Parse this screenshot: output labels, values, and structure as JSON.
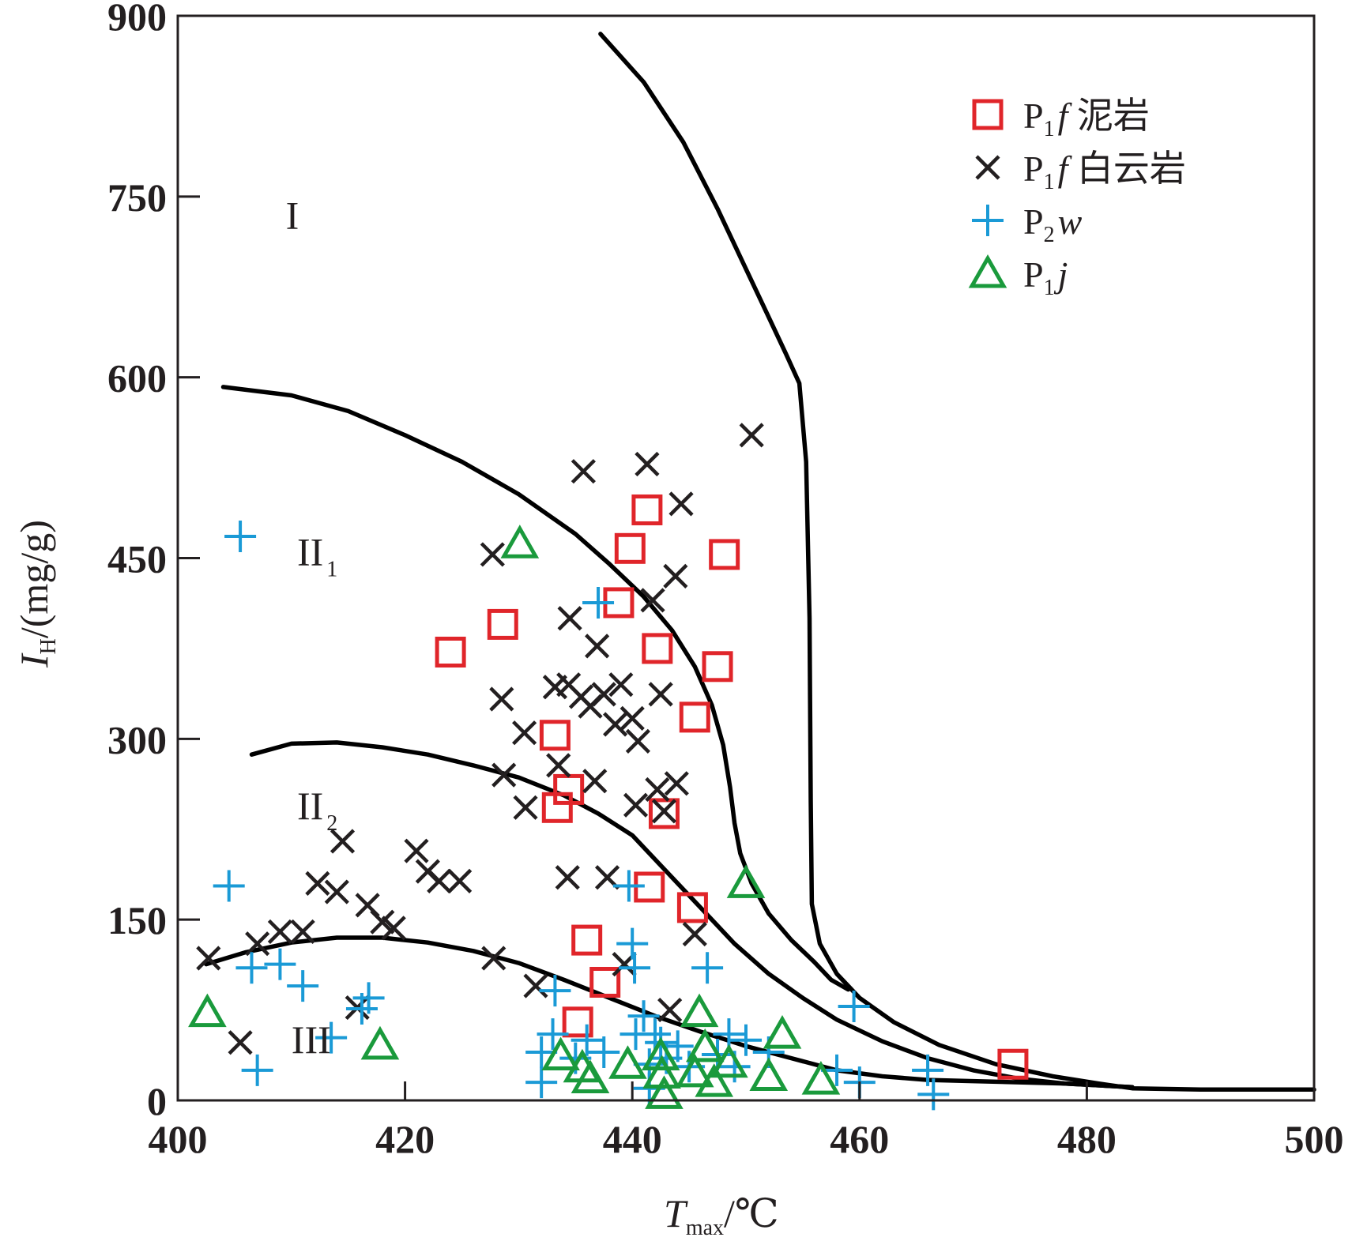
{
  "chart_data": {
    "type": "scatter",
    "xlabel": {
      "main": "T",
      "sub": "max",
      "unit": "/℃"
    },
    "ylabel": {
      "main": "I",
      "sub": "H",
      "unit": "/(mg/g)"
    },
    "xlim": [
      400,
      500
    ],
    "ylim": [
      0,
      900
    ],
    "xticks": [
      "400",
      "420",
      "440",
      "460",
      "480",
      "500"
    ],
    "yticks": [
      "0",
      "150",
      "300",
      "450",
      "600",
      "750",
      "900"
    ],
    "grid": false,
    "legend_position": "top-right",
    "colors": {
      "mudstone": "#e0252a",
      "dolomite": "#231f20",
      "p2w": "#1a9ad6",
      "p1j": "#1a9a3c",
      "curve": "#000000"
    },
    "regions": [
      {
        "key": "I",
        "main": "I",
        "sub": "",
        "x": 409.5,
        "y": 735
      },
      {
        "key": "II1",
        "main": "II",
        "sub": "1",
        "x": 410.5,
        "y": 456
      },
      {
        "key": "II2",
        "main": "II",
        "sub": "2",
        "x": 410.5,
        "y": 245
      },
      {
        "key": "III",
        "main": "III",
        "sub": "",
        "x": 410,
        "y": 51
      }
    ],
    "curves": [
      {
        "name": "I boundary",
        "points": [
          [
            437.2,
            885
          ],
          [
            441,
            845
          ],
          [
            444.5,
            795
          ],
          [
            447.5,
            740
          ],
          [
            450,
            690
          ],
          [
            452,
            650
          ],
          [
            453.5,
            620
          ],
          [
            454.7,
            595
          ],
          [
            455.3,
            530
          ],
          [
            455.6,
            400
          ],
          [
            455.7,
            250
          ],
          [
            455.8,
            163
          ],
          [
            456.5,
            130
          ],
          [
            458,
            105
          ],
          [
            460,
            85
          ],
          [
            463,
            65
          ],
          [
            467,
            46
          ],
          [
            472,
            30
          ],
          [
            477,
            20
          ],
          [
            481,
            14
          ],
          [
            484,
            10
          ],
          [
            490,
            9
          ],
          [
            495,
            9
          ],
          [
            500,
            9
          ]
        ]
      },
      {
        "name": "I-II1 boundary",
        "points": [
          [
            404,
            592
          ],
          [
            410,
            585
          ],
          [
            415,
            572
          ],
          [
            420,
            552
          ],
          [
            425,
            530
          ],
          [
            430,
            503
          ],
          [
            435,
            470
          ],
          [
            438,
            445
          ],
          [
            441,
            418
          ],
          [
            443.5,
            390
          ],
          [
            445.5,
            360
          ],
          [
            447,
            328
          ],
          [
            448,
            295
          ],
          [
            448.6,
            260
          ],
          [
            449,
            230
          ],
          [
            449.5,
            205
          ],
          [
            450.5,
            180
          ],
          [
            452,
            155
          ],
          [
            454,
            133
          ],
          [
            456,
            115
          ],
          [
            457.5,
            100
          ],
          [
            459,
            92
          ]
        ]
      },
      {
        "name": "II1-II2 boundary",
        "points": [
          [
            406.5,
            287
          ],
          [
            410,
            296
          ],
          [
            414,
            297
          ],
          [
            418,
            293
          ],
          [
            422,
            287
          ],
          [
            426,
            278
          ],
          [
            430,
            268
          ],
          [
            434,
            253
          ],
          [
            437,
            238
          ],
          [
            440,
            220
          ],
          [
            443,
            190
          ],
          [
            446,
            160
          ],
          [
            449,
            130
          ],
          [
            452,
            105
          ],
          [
            455,
            85
          ],
          [
            458,
            67
          ],
          [
            462,
            49
          ],
          [
            466,
            35
          ],
          [
            470,
            25
          ],
          [
            474,
            18
          ],
          [
            478,
            14
          ],
          [
            482,
            12
          ],
          [
            484,
            11
          ]
        ]
      },
      {
        "name": "II2-III boundary",
        "points": [
          [
            402.5,
            113
          ],
          [
            406,
            123
          ],
          [
            410,
            131
          ],
          [
            414,
            135
          ],
          [
            418,
            135
          ],
          [
            422,
            131
          ],
          [
            426,
            124
          ],
          [
            430,
            114
          ],
          [
            434,
            100
          ],
          [
            438,
            85
          ],
          [
            442,
            70
          ],
          [
            446,
            57
          ],
          [
            450,
            45
          ],
          [
            454,
            35
          ],
          [
            458,
            25
          ],
          [
            462,
            20
          ],
          [
            466,
            17
          ],
          [
            470,
            16
          ],
          [
            474,
            15
          ],
          [
            478,
            14
          ],
          [
            482,
            12
          ],
          [
            484,
            11
          ]
        ]
      }
    ],
    "series": [
      {
        "key": "mudstone",
        "name_main": "P",
        "name_sub": "1",
        "name_italic": "f",
        "name_rest": " 泥岩",
        "marker": "square",
        "points": [
          [
            424,
            372
          ],
          [
            428.6,
            395
          ],
          [
            433.2,
            303
          ],
          [
            433.4,
            243
          ],
          [
            434.4,
            258
          ],
          [
            435.2,
            65
          ],
          [
            436,
            133
          ],
          [
            437.6,
            98
          ],
          [
            438.8,
            413
          ],
          [
            439.8,
            458
          ],
          [
            441.3,
            490
          ],
          [
            441.5,
            177
          ],
          [
            442.2,
            375
          ],
          [
            442.8,
            238
          ],
          [
            445.3,
            160
          ],
          [
            445.5,
            318
          ],
          [
            447.5,
            360
          ],
          [
            448.1,
            453
          ],
          [
            473.5,
            30
          ]
        ]
      },
      {
        "key": "dolomite",
        "name_main": "P",
        "name_sub": "1",
        "name_italic": "f",
        "name_rest": " 白云岩",
        "marker": "cross",
        "points": [
          [
            402.7,
            118
          ],
          [
            405.5,
            48
          ],
          [
            407,
            130
          ],
          [
            409,
            140
          ],
          [
            411,
            140
          ],
          [
            412.3,
            180
          ],
          [
            414,
            173
          ],
          [
            414.5,
            215
          ],
          [
            415.8,
            77
          ],
          [
            416.7,
            162
          ],
          [
            418,
            148
          ],
          [
            419,
            143
          ],
          [
            421,
            207
          ],
          [
            422,
            190
          ],
          [
            423,
            182
          ],
          [
            424.8,
            182
          ],
          [
            427.7,
            453
          ],
          [
            427.8,
            118
          ],
          [
            428.5,
            333
          ],
          [
            428.7,
            270
          ],
          [
            430.5,
            305
          ],
          [
            430.6,
            243
          ],
          [
            431.5,
            95
          ],
          [
            433.2,
            343
          ],
          [
            433.5,
            278
          ],
          [
            434.3,
            185
          ],
          [
            434.4,
            345
          ],
          [
            434.5,
            400
          ],
          [
            435.5,
            335
          ],
          [
            435.7,
            522
          ],
          [
            436.3,
            327
          ],
          [
            436.7,
            265
          ],
          [
            436.9,
            377
          ],
          [
            437.5,
            337
          ],
          [
            437.8,
            185
          ],
          [
            438.5,
            312
          ],
          [
            439,
            345
          ],
          [
            439.3,
            113
          ],
          [
            440,
            317
          ],
          [
            440.3,
            245
          ],
          [
            440.5,
            298
          ],
          [
            441.3,
            528
          ],
          [
            441.8,
            415
          ],
          [
            442.2,
            258
          ],
          [
            442.5,
            337
          ],
          [
            442.8,
            240
          ],
          [
            443.3,
            75
          ],
          [
            443.8,
            435
          ],
          [
            443.9,
            263
          ],
          [
            444.3,
            495
          ],
          [
            445.5,
            138
          ],
          [
            450.5,
            552
          ]
        ]
      },
      {
        "key": "p2w",
        "name_main": "P",
        "name_sub": "2",
        "name_italic": "w",
        "name_rest": "",
        "marker": "plus",
        "points": [
          [
            404.5,
            178
          ],
          [
            405.5,
            468
          ],
          [
            406.5,
            110
          ],
          [
            407,
            25
          ],
          [
            409,
            113
          ],
          [
            411,
            95
          ],
          [
            413.5,
            52
          ],
          [
            416.2,
            76
          ],
          [
            416.8,
            85
          ],
          [
            432,
            40
          ],
          [
            432,
            15
          ],
          [
            433,
            55
          ],
          [
            433.2,
            91
          ],
          [
            435,
            35
          ],
          [
            436,
            50
          ],
          [
            437,
            413
          ],
          [
            437.5,
            40
          ],
          [
            439.7,
            178
          ],
          [
            440,
            130
          ],
          [
            440.2,
            110
          ],
          [
            440.3,
            55
          ],
          [
            441,
            70
          ],
          [
            441.5,
            30
          ],
          [
            441.5,
            10
          ],
          [
            442,
            55
          ],
          [
            442.5,
            48
          ],
          [
            443,
            35
          ],
          [
            444,
            45
          ],
          [
            445,
            28
          ],
          [
            446.6,
            110
          ],
          [
            447.5,
            38
          ],
          [
            448.5,
            55
          ],
          [
            449,
            28
          ],
          [
            450,
            50
          ],
          [
            452,
            40
          ],
          [
            458,
            25
          ],
          [
            459.5,
            78
          ],
          [
            460,
            15
          ],
          [
            466,
            25
          ],
          [
            466.5,
            5
          ]
        ]
      },
      {
        "key": "p1j",
        "name_main": "P",
        "name_sub": "1",
        "name_italic": "j",
        "name_rest": "",
        "marker": "triangle",
        "points": [
          [
            402.6,
            73
          ],
          [
            417.8,
            46
          ],
          [
            430.1,
            462
          ],
          [
            433.7,
            37
          ],
          [
            435.6,
            27
          ],
          [
            436.3,
            18
          ],
          [
            439.6,
            30
          ],
          [
            442.5,
            37
          ],
          [
            442.6,
            22
          ],
          [
            442.8,
            5
          ],
          [
            445.5,
            23
          ],
          [
            445.9,
            73
          ],
          [
            446.4,
            44
          ],
          [
            447.2,
            15
          ],
          [
            448.5,
            31
          ],
          [
            450,
            180
          ],
          [
            452,
            20
          ],
          [
            453.2,
            55
          ],
          [
            456.6,
            17
          ]
        ]
      }
    ]
  }
}
